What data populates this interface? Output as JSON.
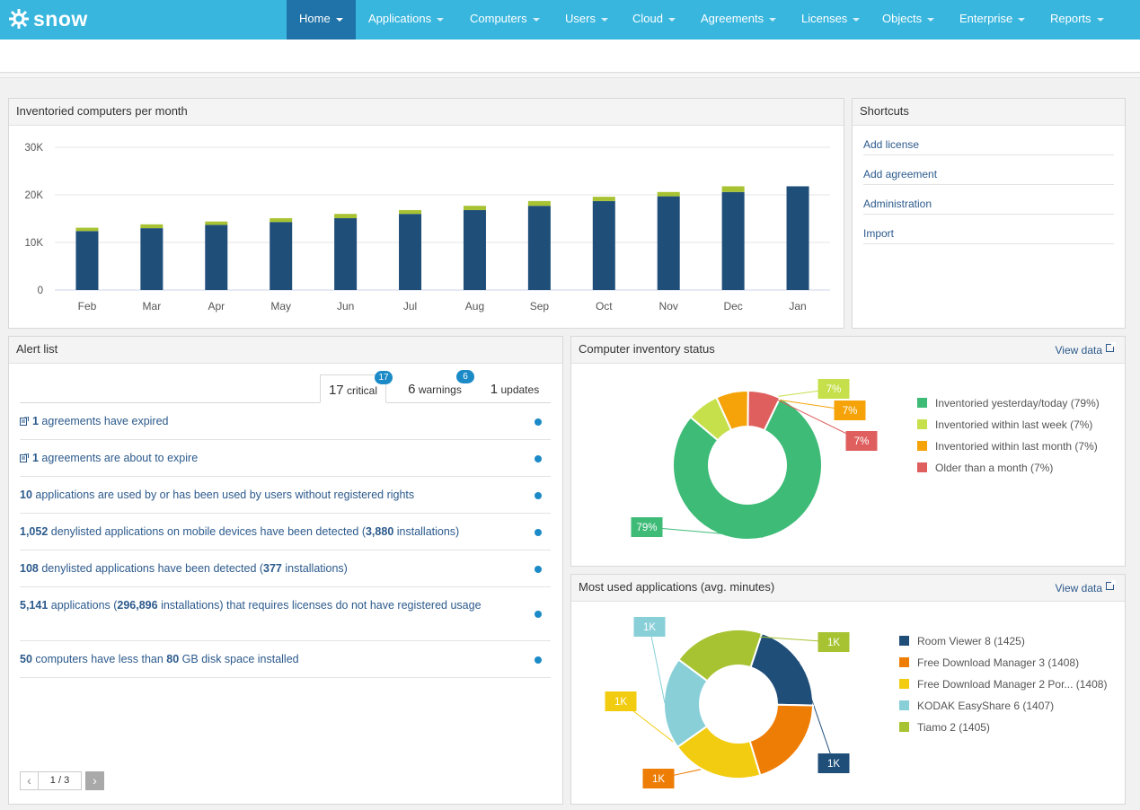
{
  "brand": {
    "name": "snow"
  },
  "nav": {
    "items": [
      {
        "label": "Home",
        "active": true
      },
      {
        "label": "Applications"
      },
      {
        "label": "Computers"
      },
      {
        "label": "Users"
      },
      {
        "label": "Cloud"
      },
      {
        "label": "Agreements"
      },
      {
        "label": "Licenses"
      },
      {
        "label": "Objects"
      },
      {
        "label": "Enterprise"
      },
      {
        "label": "Reports"
      }
    ]
  },
  "inventoried_panel": {
    "title": "Inventoried computers per month"
  },
  "shortcuts": {
    "title": "Shortcuts",
    "items": [
      "Add license",
      "Add agreement",
      "Administration",
      "Import"
    ]
  },
  "alerts": {
    "title": "Alert list",
    "tabs": [
      {
        "count": "17",
        "label": "critical",
        "badge": "17"
      },
      {
        "count": "6",
        "label": "warnings",
        "badge": "6"
      },
      {
        "count": "1",
        "label": "updates"
      }
    ],
    "rows": [
      {
        "icon": "document-icon",
        "parts": [
          [
            "b",
            "1"
          ],
          [
            "t",
            " agreements have expired"
          ]
        ]
      },
      {
        "icon": "document-icon",
        "parts": [
          [
            "b",
            "1"
          ],
          [
            "t",
            " agreements are about to expire"
          ]
        ]
      },
      {
        "parts": [
          [
            "b",
            "10"
          ],
          [
            "t",
            " applications are used by or has been used by users without registered rights"
          ]
        ]
      },
      {
        "parts": [
          [
            "b",
            "1,052"
          ],
          [
            "t",
            " denylisted applications on mobile devices have been detected ("
          ],
          [
            "b",
            "3,880"
          ],
          [
            "t",
            " installations)"
          ]
        ]
      },
      {
        "parts": [
          [
            "b",
            "108"
          ],
          [
            "t",
            " denylisted applications have been detected ("
          ],
          [
            "b",
            "377"
          ],
          [
            "t",
            " installations)"
          ]
        ]
      },
      {
        "parts": [
          [
            "b",
            "5,141"
          ],
          [
            "t",
            " applications ("
          ],
          [
            "b",
            "296,896"
          ],
          [
            "t",
            " installations) that requires licenses do not have registered usage"
          ]
        ]
      },
      {
        "parts": [
          [
            "b",
            "50"
          ],
          [
            "t",
            " computers have less than "
          ],
          [
            "b",
            "80"
          ],
          [
            "t",
            " GB disk space installed"
          ]
        ]
      }
    ],
    "pager": {
      "text": "1 / 3"
    }
  },
  "inventory_status": {
    "title": "Computer inventory status",
    "view_data": "View data"
  },
  "most_used": {
    "title": "Most used applications (avg. minutes)",
    "view_data": "View data"
  },
  "colors": {
    "accent": "#38b6de",
    "nav_active": "#1f73a8",
    "bar_primary": "#1f4e79",
    "bar_secondary": "#a7c332",
    "badge": "#1b8ac7"
  },
  "chart_data": [
    {
      "type": "bar",
      "stacked": true,
      "categories": [
        "Feb",
        "Mar",
        "Apr",
        "May",
        "Jun",
        "Jul",
        "Aug",
        "Sep",
        "Oct",
        "Nov",
        "Dec",
        "Jan"
      ],
      "series": [
        {
          "values": [
            12400,
            13000,
            13700,
            14300,
            15100,
            16000,
            16800,
            17700,
            18700,
            19700,
            20600,
            21800
          ],
          "color": "#1f4e79"
        },
        {
          "values": [
            700,
            800,
            700,
            800,
            900,
            800,
            900,
            1000,
            900,
            900,
            1200,
            0
          ],
          "color": "#a7c332"
        }
      ],
      "yticks": [
        "0",
        "10K",
        "20K",
        "30K"
      ],
      "ylim": [
        0,
        30000
      ],
      "grid": true
    },
    {
      "type": "pie",
      "donut": true,
      "slices": [
        {
          "label": "Inventoried yesterday/today (79%)",
          "value": 79,
          "data_label": "79%",
          "color": "#3dbb77"
        },
        {
          "label": "Inventoried within last week (7%)",
          "value": 7,
          "data_label": "7%",
          "color": "#c5e04a"
        },
        {
          "label": "Inventoried within last month (7%)",
          "value": 7,
          "data_label": "7%",
          "color": "#f5a308"
        },
        {
          "label": "Older than a month (7%)",
          "value": 7,
          "data_label": "7%",
          "color": "#df5f5f"
        }
      ],
      "legend": "right"
    },
    {
      "type": "pie",
      "donut": true,
      "slices": [
        {
          "label": "Room Viewer 8 (1425)",
          "value": 1425,
          "data_label": "1K",
          "color": "#1f4e79"
        },
        {
          "label": "Free Download Manager 3 (1408)",
          "value": 1408,
          "data_label": "1K",
          "color": "#ee7d05"
        },
        {
          "label": "Free Download Manager 2 Por... (1408)",
          "value": 1408,
          "data_label": "1K",
          "color": "#f2cc10"
        },
        {
          "label": "KODAK EasyShare 6 (1407)",
          "value": 1407,
          "data_label": "1K",
          "color": "#88cfd8"
        },
        {
          "label": "Tiamo 2 (1405)",
          "value": 1405,
          "data_label": "1K",
          "color": "#a7c332"
        }
      ],
      "legend": "right"
    }
  ]
}
